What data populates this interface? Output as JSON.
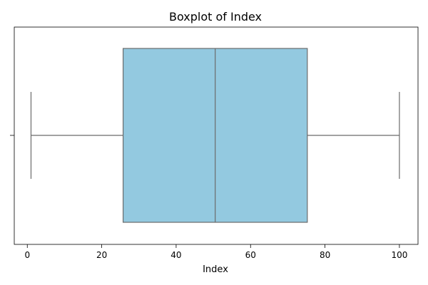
{
  "chart_data": {
    "type": "box",
    "title": "Boxplot of Index",
    "xlabel": "Index",
    "ylabel": "",
    "xlim": [
      -3.5,
      105
    ],
    "x_ticks": [
      0,
      20,
      40,
      60,
      80,
      100
    ],
    "grid": false,
    "box": {
      "whisker_low": 1,
      "q1": 25.75,
      "median": 50.5,
      "q3": 75.25,
      "whisker_high": 100
    },
    "box_color": "#93c9e0",
    "line_color": "#6b6b6b"
  }
}
